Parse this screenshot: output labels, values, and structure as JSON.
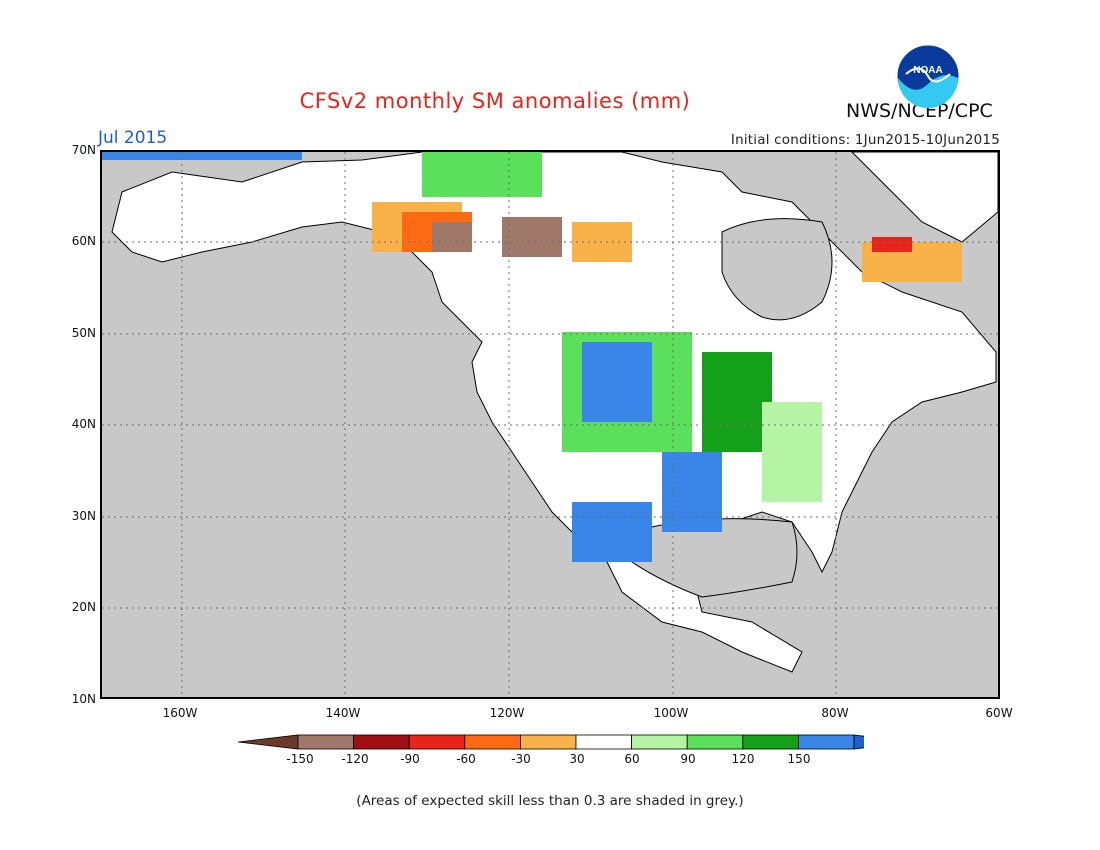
{
  "title": "CFSv2 monthly SM anomalies (mm)",
  "agency": "NWS/NCEP/CPC",
  "logo_text": "NOAA",
  "valid_month": "Jul 2015",
  "initial_conditions": "Initial conditions: 1Jun2015-10Jun2015",
  "latitude_labels": [
    "70N",
    "60N",
    "50N",
    "40N",
    "30N",
    "20N",
    "10N"
  ],
  "longitude_labels": [
    "160W",
    "140W",
    "120W",
    "100W",
    "80W",
    "60W"
  ],
  "colorbar": {
    "tick_labels": [
      "-150",
      "-120",
      "-90",
      "-60",
      "-30",
      "30",
      "60",
      "90",
      "120",
      "150"
    ],
    "colors": [
      "#6b3a2a",
      "#a0786a",
      "#a00f12",
      "#e8231c",
      "#ff6a13",
      "#f9b24a",
      "#ffffff",
      "#b4f4a4",
      "#5ae05a",
      "#14a018",
      "#3a86e8",
      "#1e5fd0"
    ]
  },
  "footnote": "(Areas of expected skill less than 0.3 are shaded in grey.)",
  "map_colors": {
    "ocean": "#c8c8c8",
    "land_low_skill": "#ffffff",
    "gridline": "#6e6e6e"
  }
}
